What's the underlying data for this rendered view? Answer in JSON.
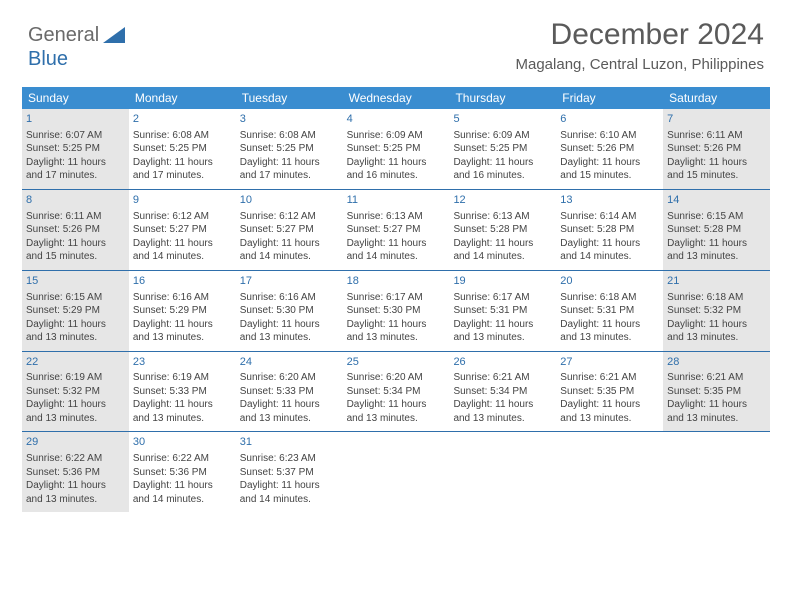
{
  "brand": {
    "part1": "General",
    "part2": "Blue"
  },
  "title": "December 2024",
  "location": "Magalang, Central Luzon, Philippines",
  "colors": {
    "header_bg": "#3a8dd0",
    "rule": "#2f6fab",
    "shade": "#e6e6e6",
    "text": "#444444",
    "daynum": "#2f6fab"
  },
  "day_headers": [
    "Sunday",
    "Monday",
    "Tuesday",
    "Wednesday",
    "Thursday",
    "Friday",
    "Saturday"
  ],
  "weeks": [
    [
      {
        "num": "1",
        "shade": true,
        "sr": "Sunrise: 6:07 AM",
        "ss": "Sunset: 5:25 PM",
        "d1": "Daylight: 11 hours",
        "d2": "and 17 minutes."
      },
      {
        "num": "2",
        "sr": "Sunrise: 6:08 AM",
        "ss": "Sunset: 5:25 PM",
        "d1": "Daylight: 11 hours",
        "d2": "and 17 minutes."
      },
      {
        "num": "3",
        "sr": "Sunrise: 6:08 AM",
        "ss": "Sunset: 5:25 PM",
        "d1": "Daylight: 11 hours",
        "d2": "and 17 minutes."
      },
      {
        "num": "4",
        "sr": "Sunrise: 6:09 AM",
        "ss": "Sunset: 5:25 PM",
        "d1": "Daylight: 11 hours",
        "d2": "and 16 minutes."
      },
      {
        "num": "5",
        "sr": "Sunrise: 6:09 AM",
        "ss": "Sunset: 5:25 PM",
        "d1": "Daylight: 11 hours",
        "d2": "and 16 minutes."
      },
      {
        "num": "6",
        "sr": "Sunrise: 6:10 AM",
        "ss": "Sunset: 5:26 PM",
        "d1": "Daylight: 11 hours",
        "d2": "and 15 minutes."
      },
      {
        "num": "7",
        "shade": true,
        "sr": "Sunrise: 6:11 AM",
        "ss": "Sunset: 5:26 PM",
        "d1": "Daylight: 11 hours",
        "d2": "and 15 minutes."
      }
    ],
    [
      {
        "num": "8",
        "shade": true,
        "sr": "Sunrise: 6:11 AM",
        "ss": "Sunset: 5:26 PM",
        "d1": "Daylight: 11 hours",
        "d2": "and 15 minutes."
      },
      {
        "num": "9",
        "sr": "Sunrise: 6:12 AM",
        "ss": "Sunset: 5:27 PM",
        "d1": "Daylight: 11 hours",
        "d2": "and 14 minutes."
      },
      {
        "num": "10",
        "sr": "Sunrise: 6:12 AM",
        "ss": "Sunset: 5:27 PM",
        "d1": "Daylight: 11 hours",
        "d2": "and 14 minutes."
      },
      {
        "num": "11",
        "sr": "Sunrise: 6:13 AM",
        "ss": "Sunset: 5:27 PM",
        "d1": "Daylight: 11 hours",
        "d2": "and 14 minutes."
      },
      {
        "num": "12",
        "sr": "Sunrise: 6:13 AM",
        "ss": "Sunset: 5:28 PM",
        "d1": "Daylight: 11 hours",
        "d2": "and 14 minutes."
      },
      {
        "num": "13",
        "sr": "Sunrise: 6:14 AM",
        "ss": "Sunset: 5:28 PM",
        "d1": "Daylight: 11 hours",
        "d2": "and 14 minutes."
      },
      {
        "num": "14",
        "shade": true,
        "sr": "Sunrise: 6:15 AM",
        "ss": "Sunset: 5:28 PM",
        "d1": "Daylight: 11 hours",
        "d2": "and 13 minutes."
      }
    ],
    [
      {
        "num": "15",
        "shade": true,
        "sr": "Sunrise: 6:15 AM",
        "ss": "Sunset: 5:29 PM",
        "d1": "Daylight: 11 hours",
        "d2": "and 13 minutes."
      },
      {
        "num": "16",
        "sr": "Sunrise: 6:16 AM",
        "ss": "Sunset: 5:29 PM",
        "d1": "Daylight: 11 hours",
        "d2": "and 13 minutes."
      },
      {
        "num": "17",
        "sr": "Sunrise: 6:16 AM",
        "ss": "Sunset: 5:30 PM",
        "d1": "Daylight: 11 hours",
        "d2": "and 13 minutes."
      },
      {
        "num": "18",
        "sr": "Sunrise: 6:17 AM",
        "ss": "Sunset: 5:30 PM",
        "d1": "Daylight: 11 hours",
        "d2": "and 13 minutes."
      },
      {
        "num": "19",
        "sr": "Sunrise: 6:17 AM",
        "ss": "Sunset: 5:31 PM",
        "d1": "Daylight: 11 hours",
        "d2": "and 13 minutes."
      },
      {
        "num": "20",
        "sr": "Sunrise: 6:18 AM",
        "ss": "Sunset: 5:31 PM",
        "d1": "Daylight: 11 hours",
        "d2": "and 13 minutes."
      },
      {
        "num": "21",
        "shade": true,
        "sr": "Sunrise: 6:18 AM",
        "ss": "Sunset: 5:32 PM",
        "d1": "Daylight: 11 hours",
        "d2": "and 13 minutes."
      }
    ],
    [
      {
        "num": "22",
        "shade": true,
        "sr": "Sunrise: 6:19 AM",
        "ss": "Sunset: 5:32 PM",
        "d1": "Daylight: 11 hours",
        "d2": "and 13 minutes."
      },
      {
        "num": "23",
        "sr": "Sunrise: 6:19 AM",
        "ss": "Sunset: 5:33 PM",
        "d1": "Daylight: 11 hours",
        "d2": "and 13 minutes."
      },
      {
        "num": "24",
        "sr": "Sunrise: 6:20 AM",
        "ss": "Sunset: 5:33 PM",
        "d1": "Daylight: 11 hours",
        "d2": "and 13 minutes."
      },
      {
        "num": "25",
        "sr": "Sunrise: 6:20 AM",
        "ss": "Sunset: 5:34 PM",
        "d1": "Daylight: 11 hours",
        "d2": "and 13 minutes."
      },
      {
        "num": "26",
        "sr": "Sunrise: 6:21 AM",
        "ss": "Sunset: 5:34 PM",
        "d1": "Daylight: 11 hours",
        "d2": "and 13 minutes."
      },
      {
        "num": "27",
        "sr": "Sunrise: 6:21 AM",
        "ss": "Sunset: 5:35 PM",
        "d1": "Daylight: 11 hours",
        "d2": "and 13 minutes."
      },
      {
        "num": "28",
        "shade": true,
        "sr": "Sunrise: 6:21 AM",
        "ss": "Sunset: 5:35 PM",
        "d1": "Daylight: 11 hours",
        "d2": "and 13 minutes."
      }
    ],
    [
      {
        "num": "29",
        "shade": true,
        "sr": "Sunrise: 6:22 AM",
        "ss": "Sunset: 5:36 PM",
        "d1": "Daylight: 11 hours",
        "d2": "and 13 minutes."
      },
      {
        "num": "30",
        "sr": "Sunrise: 6:22 AM",
        "ss": "Sunset: 5:36 PM",
        "d1": "Daylight: 11 hours",
        "d2": "and 14 minutes."
      },
      {
        "num": "31",
        "sr": "Sunrise: 6:23 AM",
        "ss": "Sunset: 5:37 PM",
        "d1": "Daylight: 11 hours",
        "d2": "and 14 minutes."
      },
      {
        "empty": true
      },
      {
        "empty": true
      },
      {
        "empty": true
      },
      {
        "empty": true
      }
    ]
  ]
}
